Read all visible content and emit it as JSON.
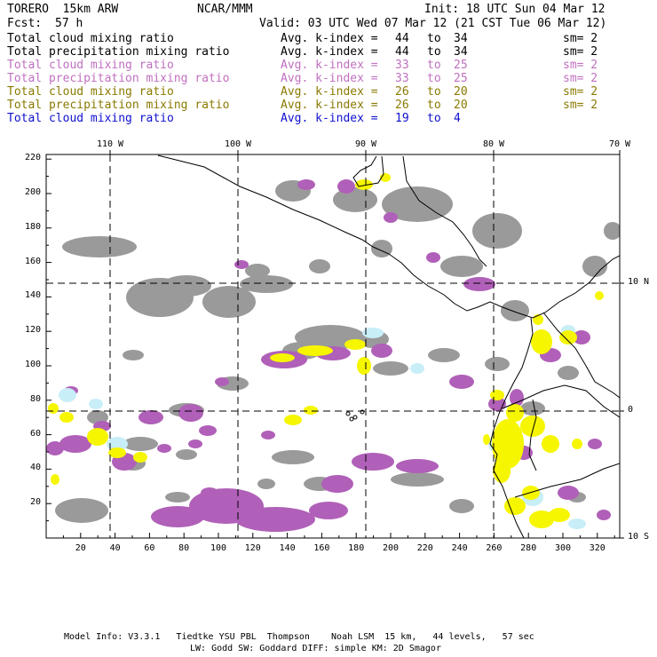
{
  "header": {
    "model": "TORERO  15km ARW",
    "org": "NCAR/MMM",
    "init": "Init: 18 UTC Sun 04 Mar 12",
    "fcst_label": "Fcst:",
    "fcst_value": "57 h",
    "valid": "Valid: 03 UTC Wed 07 Mar 12 (21 CST Tue 06 Mar 12)"
  },
  "legend": [
    {
      "field": "Total cloud mixing ratio",
      "index": "Avg. k-index =",
      "from": "44",
      "to_word": "to",
      "to": "34",
      "sm": "sm= 2",
      "color": "#000000"
    },
    {
      "field": "Total precipitation mixing ratio",
      "index": "Avg. k-index =",
      "from": "44",
      "to_word": "to",
      "to": "34",
      "sm": "sm= 2",
      "color": "#000000"
    },
    {
      "field": "Total cloud mixing ratio",
      "index": "Avg. k-index =",
      "from": "33",
      "to_word": "to",
      "to": "25",
      "sm": "sm= 2",
      "color": "#c070c0"
    },
    {
      "field": "Total precipitation mixing ratio",
      "index": "Avg. k-index =",
      "from": "33",
      "to_word": "to",
      "to": "25",
      "sm": "sm= 2",
      "color": "#c070c0"
    },
    {
      "field": "Total cloud mixing ratio",
      "index": "Avg. k-index =",
      "from": "26",
      "to_word": "to",
      "to": "20",
      "sm": "sm= 2",
      "color": "#8a7a00"
    },
    {
      "field": "Total precipitation mixing ratio",
      "index": "Avg. k-index =",
      "from": "26",
      "to_word": "to",
      "to": "20",
      "sm": "sm= 2",
      "color": "#8a7a00"
    },
    {
      "field": "Total cloud mixing ratio",
      "index": "Avg. k-index =",
      "from": "19",
      "to_word": "to",
      "to": "4",
      "sm": "",
      "color": "#1010d0"
    }
  ],
  "map": {
    "top_lon_labels": [
      "110 W",
      "100 W",
      "90 W",
      "80 W",
      "70 W"
    ],
    "right_lat_labels": [
      "10 N",
      "0",
      "10 S"
    ],
    "x_ticks": [
      "20",
      "40",
      "60",
      "80",
      "100",
      "120",
      "140",
      "160",
      "180",
      "200",
      "220",
      "240",
      "260",
      "280",
      "300",
      "320"
    ],
    "y_ticks": [
      "20",
      "40",
      "60",
      "80",
      "100",
      "120",
      "140",
      "160",
      "180",
      "200",
      "220"
    ],
    "colors": {
      "gray": "#9a9a9a",
      "purple": "#b060b8",
      "yellow": "#f6f600",
      "lightblue": "#c8eef8"
    }
  },
  "footer": {
    "line1": "Model Info: V3.3.1   Tiedtke YSU PBL  Thompson    Noah LSM  15 km,   44 levels,   57 sec",
    "line2": "LW: Godd SW: Goddard DIFF: simple KM: 2D Smagor"
  }
}
